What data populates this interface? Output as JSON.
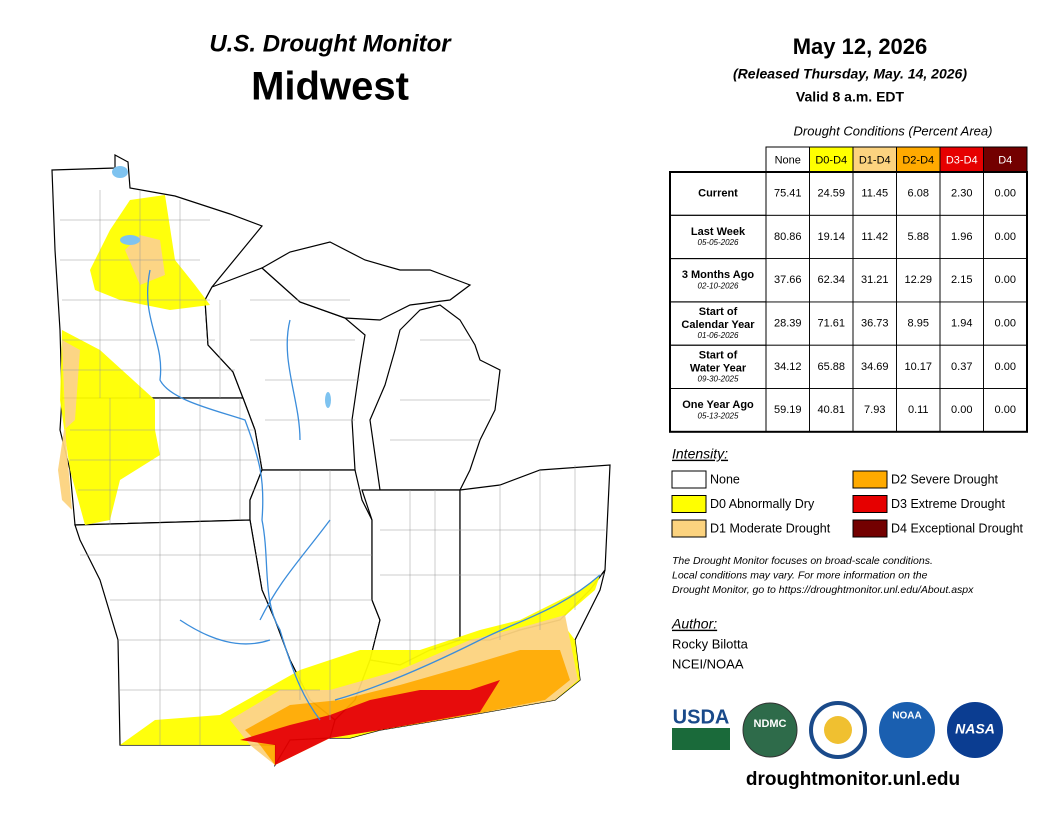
{
  "header": {
    "subtitle": "U.S. Drought Monitor",
    "title": "Midwest"
  },
  "date": {
    "date": "May 12, 2026",
    "released": "(Released Thursday, May. 14, 2026)",
    "valid": "Valid 8 a.m. EDT"
  },
  "table": {
    "caption": "Drought Conditions (Percent Area)",
    "columns": [
      {
        "label": "None",
        "color": "#ffffff",
        "text_color": "#000000"
      },
      {
        "label": "D0-D4",
        "color": "#ffff00",
        "text_color": "#000000"
      },
      {
        "label": "D1-D4",
        "color": "#fcd37f",
        "text_color": "#000000"
      },
      {
        "label": "D2-D4",
        "color": "#ffaa00",
        "text_color": "#000000"
      },
      {
        "label": "D3-D4",
        "color": "#e60000",
        "text_color": "#ffffff"
      },
      {
        "label": "D4",
        "color": "#730000",
        "text_color": "#ffffff"
      }
    ],
    "rows": [
      {
        "label": [
          "Current"
        ],
        "values": [
          "75.41",
          "24.59",
          "11.45",
          "6.08",
          "2.30",
          "0.00"
        ]
      },
      {
        "label": [
          "Last Week"
        ],
        "date": "05-05-2026",
        "values": [
          "80.86",
          "19.14",
          "11.42",
          "5.88",
          "1.96",
          "0.00"
        ]
      },
      {
        "label": [
          "3 Months Ago"
        ],
        "date": "02-10-2026",
        "values": [
          "37.66",
          "62.34",
          "31.21",
          "12.29",
          "2.15",
          "0.00"
        ]
      },
      {
        "label": [
          "Start of",
          "Calendar Year"
        ],
        "date": "01-06-2026",
        "values": [
          "28.39",
          "71.61",
          "36.73",
          "8.95",
          "1.94",
          "0.00"
        ]
      },
      {
        "label": [
          "Start of",
          "Water Year"
        ],
        "date": "09-30-2025",
        "values": [
          "34.12",
          "65.88",
          "34.69",
          "10.17",
          "0.37",
          "0.00"
        ]
      },
      {
        "label": [
          "One Year Ago"
        ],
        "date": "05-13-2025",
        "values": [
          "59.19",
          "40.81",
          "7.93",
          "0.11",
          "0.00",
          "0.00"
        ]
      }
    ]
  },
  "legend": {
    "title": "Intensity:",
    "items": [
      {
        "label": "None",
        "color": "#ffffff"
      },
      {
        "label": "D0 Abnormally Dry",
        "color": "#ffff00"
      },
      {
        "label": "D1 Moderate Drought",
        "color": "#fcd37f"
      },
      {
        "label": "D2 Severe Drought",
        "color": "#ffaa00"
      },
      {
        "label": "D3 Extreme Drought",
        "color": "#e60000"
      },
      {
        "label": "D4 Exceptional Drought",
        "color": "#730000"
      }
    ]
  },
  "note": [
    "The Drought Monitor focuses on broad-scale conditions.",
    "Local conditions may vary. For more information on the",
    "Drought Monitor, go to https://droughtmonitor.unl.edu/About.aspx"
  ],
  "author": {
    "title": "Author:",
    "name": "Rocky Bilotta",
    "org": "NCEI/NOAA"
  },
  "logos": [
    "USDA",
    "NDMC",
    "NOAA",
    "NASA"
  ],
  "url": "droughtmonitor.unl.edu"
}
